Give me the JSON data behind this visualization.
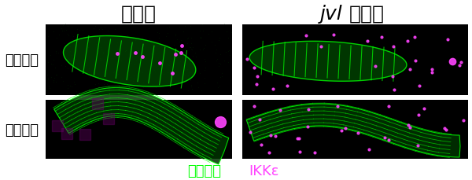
{
  "title_left": "野生型",
  "title_right": "jvl変異体",
  "row_label_top": "伸長初期",
  "row_label_bottom": "伸長後期",
  "legend_green": "アクチン",
  "legend_magenta": "IKKε",
  "bg_color": "#ffffff",
  "panel_bg": "#000000",
  "green_color": "#00ff00",
  "magenta_color": "#ff44ff",
  "title_fontsize": 18,
  "row_label_fontsize": 13,
  "legend_fontsize": 13,
  "fig_width": 6.0,
  "fig_height": 2.3,
  "dpi": 100
}
